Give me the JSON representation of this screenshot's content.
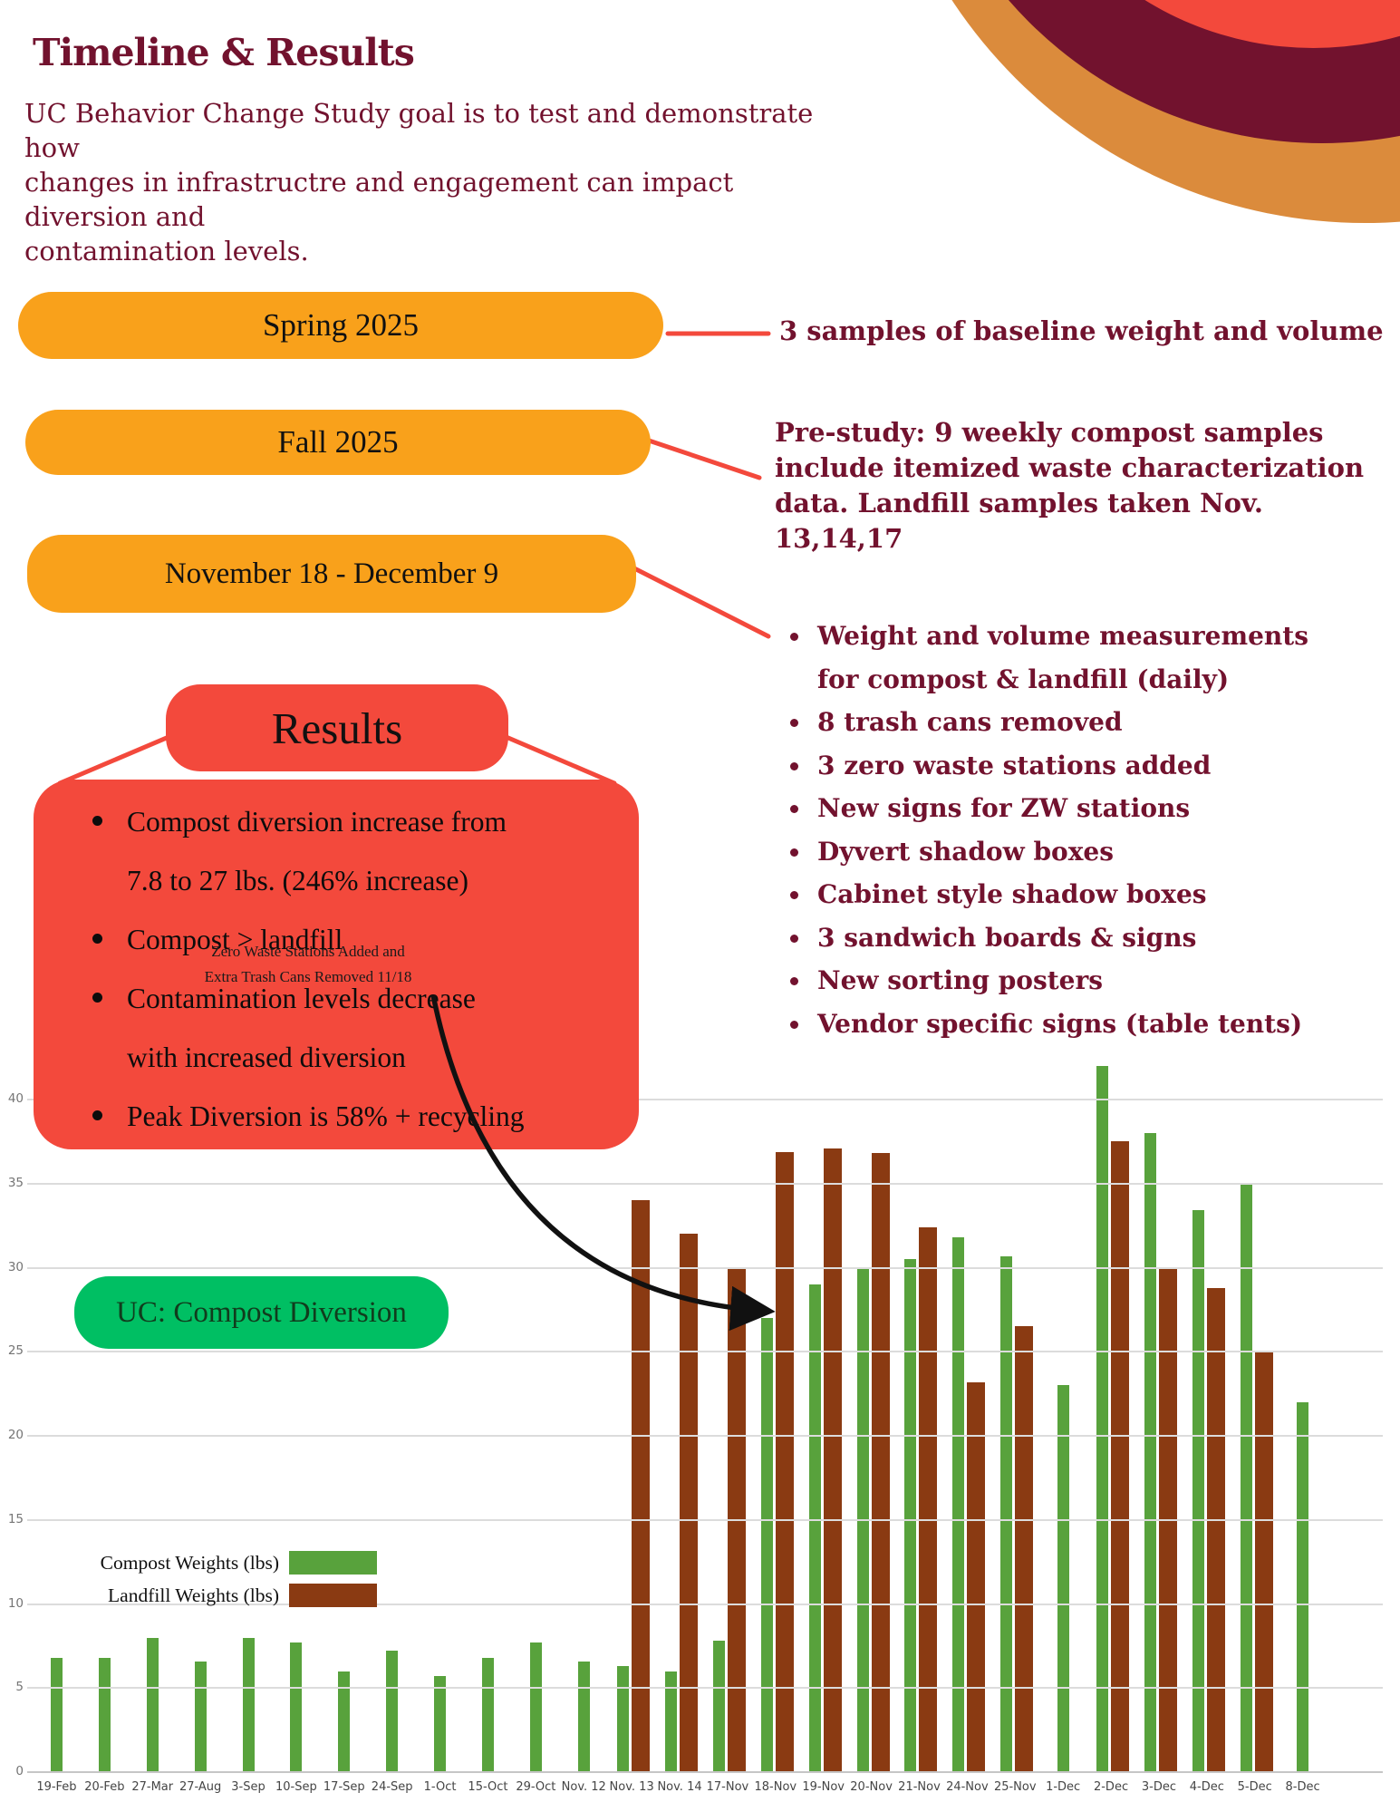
{
  "colors": {
    "maroon": "#72122E",
    "orange_pill": "#F9A11B",
    "red_box": "#F3493C",
    "green_pill": "#00BF63",
    "compost_green": "#58A23C",
    "landfill_brown": "#8A3A12",
    "corner_orange": "#DB8B3C",
    "corner_maroon": "#72122E",
    "corner_red": "#F3493C"
  },
  "header": {
    "title": "Timeline & Results",
    "intro": "UC Behavior Change Study goal is to test and demonstrate how\nchanges in infrastructre and engagement can impact  diversion and\ncontamination levels."
  },
  "timeline": {
    "spring": {
      "label": "Spring 2025",
      "note": "3 samples of baseline weight and volume"
    },
    "fall": {
      "label": "Fall 2025",
      "note": "Pre-study: 9 weekly compost samples\ninclude itemized waste characterization\ndata. Landfill samples taken Nov. 13,14,17"
    },
    "study": {
      "label": "November 18 - December 9"
    }
  },
  "study_bullets": [
    "Weight and volume measurements\nfor compost & landfill (daily)",
    "8 trash cans removed",
    "3 zero waste stations added",
    "New signs for ZW stations",
    "Dyvert shadow boxes",
    "Cabinet style shadow boxes",
    "3 sandwich boards & signs",
    "New sorting posters",
    "Vendor specific signs (table tents)"
  ],
  "results": {
    "title": "Results",
    "bullets": [
      "Compost diversion increase from\n7.8 to 27 lbs. (246% increase)",
      "Compost > landfill",
      "Contamination levels decrease\nwith increased diversion",
      "Peak Diversion is 58% + recycling"
    ]
  },
  "chart_data": {
    "type": "bar",
    "title": "UC: Compost Diversion",
    "categories": [
      "19-Feb",
      "20-Feb",
      "27-Mar",
      "27-Aug",
      "3-Sep",
      "10-Sep",
      "17-Sep",
      "24-Sep",
      "1-Oct",
      "15-Oct",
      "29-Oct",
      "Nov. 12",
      "Nov. 13",
      "Nov. 14",
      "17-Nov",
      "18-Nov",
      "19-Nov",
      "20-Nov",
      "21-Nov",
      "24-Nov",
      "25-Nov",
      "1-Dec",
      "2-Dec",
      "3-Dec",
      "4-Dec",
      "5-Dec",
      "8-Dec"
    ],
    "series": [
      {
        "name": "Compost Weights (lbs)",
        "color": "#58A23C",
        "values": [
          6.8,
          6.8,
          8,
          6.6,
          8,
          7.7,
          6,
          7.2,
          5.7,
          6.8,
          7.7,
          6.6,
          6.3,
          6,
          7.8,
          27,
          29,
          30,
          30.5,
          31.8,
          30.7,
          23,
          42,
          38,
          33.4,
          35,
          22
        ]
      },
      {
        "name": "Landfill Weights (lbs)",
        "color": "#8A3A12",
        "values": [
          null,
          null,
          null,
          null,
          null,
          null,
          null,
          null,
          null,
          null,
          null,
          null,
          34,
          32,
          30,
          36.9,
          37.1,
          36.8,
          32.4,
          23.2,
          26.5,
          null,
          37.5,
          30,
          28.8,
          25,
          null
        ]
      }
    ],
    "ylabel": "",
    "xlabel": "",
    "ylim": [
      0,
      40
    ],
    "ytick_step": 5,
    "grid": true,
    "legend_position": "inside-left",
    "annotation": {
      "text": "Zero Waste Stations Added and\nExtra Trash Cans Removed 11/18"
    }
  }
}
